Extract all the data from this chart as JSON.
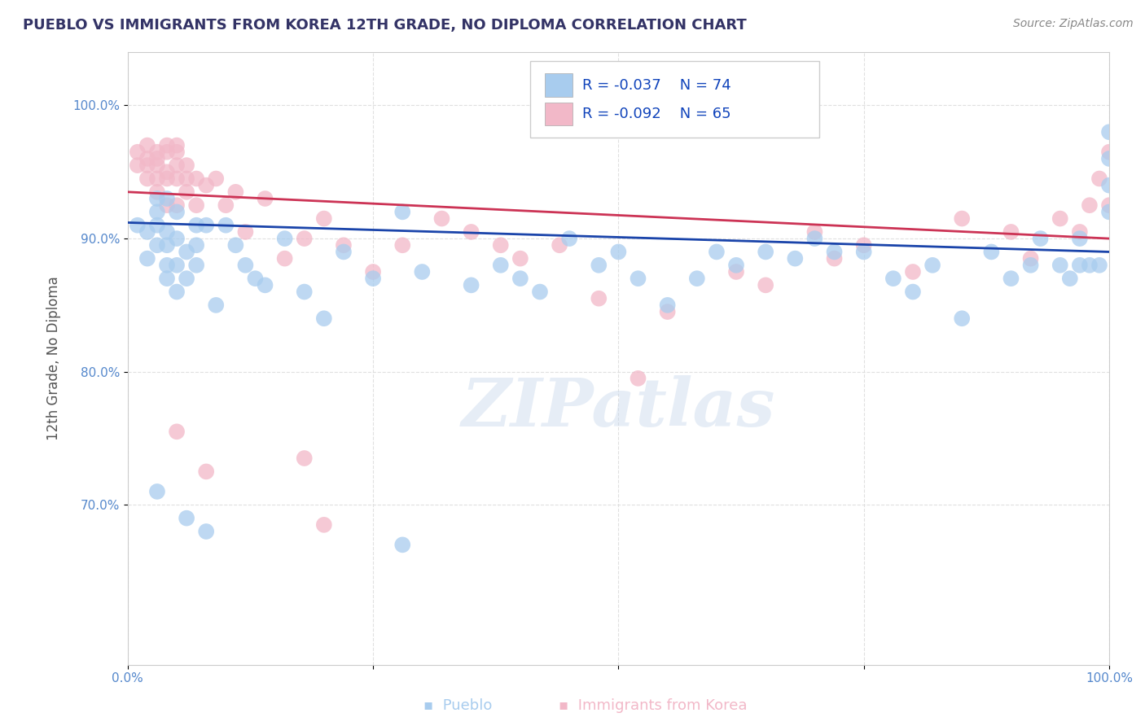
{
  "title": "PUEBLO VS IMMIGRANTS FROM KOREA 12TH GRADE, NO DIPLOMA CORRELATION CHART",
  "source": "Source: ZipAtlas.com",
  "ylabel": "12th Grade, No Diploma",
  "xlim": [
    0.0,
    1.0
  ],
  "ylim": [
    0.58,
    1.04
  ],
  "blue_color": "#A8CCEE",
  "pink_color": "#F2B8C8",
  "blue_line_color": "#1A44AA",
  "pink_line_color": "#CC3355",
  "legend_blue_R": "-0.037",
  "legend_blue_N": "74",
  "legend_pink_R": "-0.092",
  "legend_pink_N": "65",
  "legend_label_blue": "Pueblo",
  "legend_label_pink": "Immigrants from Korea",
  "watermark": "ZIPatlas",
  "background_color": "#FFFFFF",
  "grid_color": "#DDDDDD",
  "blue_scatter_x": [
    0.01,
    0.02,
    0.02,
    0.03,
    0.03,
    0.03,
    0.03,
    0.04,
    0.04,
    0.04,
    0.04,
    0.04,
    0.05,
    0.05,
    0.05,
    0.05,
    0.06,
    0.06,
    0.07,
    0.07,
    0.07,
    0.08,
    0.09,
    0.1,
    0.11,
    0.12,
    0.13,
    0.14,
    0.16,
    0.18,
    0.2,
    0.22,
    0.25,
    0.28,
    0.3,
    0.35,
    0.38,
    0.4,
    0.42,
    0.45,
    0.48,
    0.5,
    0.52,
    0.55,
    0.58,
    0.6,
    0.62,
    0.65,
    0.68,
    0.7,
    0.72,
    0.75,
    0.78,
    0.8,
    0.82,
    0.85,
    0.88,
    0.9,
    0.92,
    0.93,
    0.95,
    0.96,
    0.97,
    0.97,
    0.98,
    0.99,
    1.0,
    1.0,
    1.0,
    1.0,
    0.03,
    0.06,
    0.08,
    0.28
  ],
  "blue_scatter_y": [
    0.91,
    0.905,
    0.885,
    0.92,
    0.895,
    0.91,
    0.93,
    0.88,
    0.895,
    0.87,
    0.905,
    0.93,
    0.88,
    0.9,
    0.86,
    0.92,
    0.89,
    0.87,
    0.895,
    0.88,
    0.91,
    0.91,
    0.85,
    0.91,
    0.895,
    0.88,
    0.87,
    0.865,
    0.9,
    0.86,
    0.84,
    0.89,
    0.87,
    0.92,
    0.875,
    0.865,
    0.88,
    0.87,
    0.86,
    0.9,
    0.88,
    0.89,
    0.87,
    0.85,
    0.87,
    0.89,
    0.88,
    0.89,
    0.885,
    0.9,
    0.89,
    0.89,
    0.87,
    0.86,
    0.88,
    0.84,
    0.89,
    0.87,
    0.88,
    0.9,
    0.88,
    0.87,
    0.88,
    0.9,
    0.88,
    0.88,
    0.98,
    0.96,
    0.94,
    0.92,
    0.71,
    0.69,
    0.68,
    0.67
  ],
  "pink_scatter_x": [
    0.01,
    0.01,
    0.02,
    0.02,
    0.02,
    0.02,
    0.03,
    0.03,
    0.03,
    0.03,
    0.03,
    0.04,
    0.04,
    0.04,
    0.04,
    0.04,
    0.05,
    0.05,
    0.05,
    0.05,
    0.05,
    0.06,
    0.06,
    0.06,
    0.07,
    0.07,
    0.08,
    0.09,
    0.1,
    0.11,
    0.12,
    0.14,
    0.16,
    0.18,
    0.2,
    0.22,
    0.25,
    0.28,
    0.32,
    0.35,
    0.38,
    0.4,
    0.44,
    0.48,
    0.55,
    0.62,
    0.65,
    0.7,
    0.72,
    0.75,
    0.8,
    0.85,
    0.9,
    0.92,
    0.95,
    0.97,
    0.98,
    0.99,
    1.0,
    1.0,
    0.05,
    0.08,
    0.18,
    0.2,
    0.52
  ],
  "pink_scatter_y": [
    0.955,
    0.965,
    0.945,
    0.96,
    0.955,
    0.97,
    0.955,
    0.965,
    0.945,
    0.96,
    0.935,
    0.95,
    0.965,
    0.945,
    0.925,
    0.97,
    0.945,
    0.955,
    0.965,
    0.925,
    0.97,
    0.945,
    0.955,
    0.935,
    0.945,
    0.925,
    0.94,
    0.945,
    0.925,
    0.935,
    0.905,
    0.93,
    0.885,
    0.9,
    0.915,
    0.895,
    0.875,
    0.895,
    0.915,
    0.905,
    0.895,
    0.885,
    0.895,
    0.855,
    0.845,
    0.875,
    0.865,
    0.905,
    0.885,
    0.895,
    0.875,
    0.915,
    0.905,
    0.885,
    0.915,
    0.905,
    0.925,
    0.945,
    0.965,
    0.925,
    0.755,
    0.725,
    0.735,
    0.685,
    0.795
  ]
}
